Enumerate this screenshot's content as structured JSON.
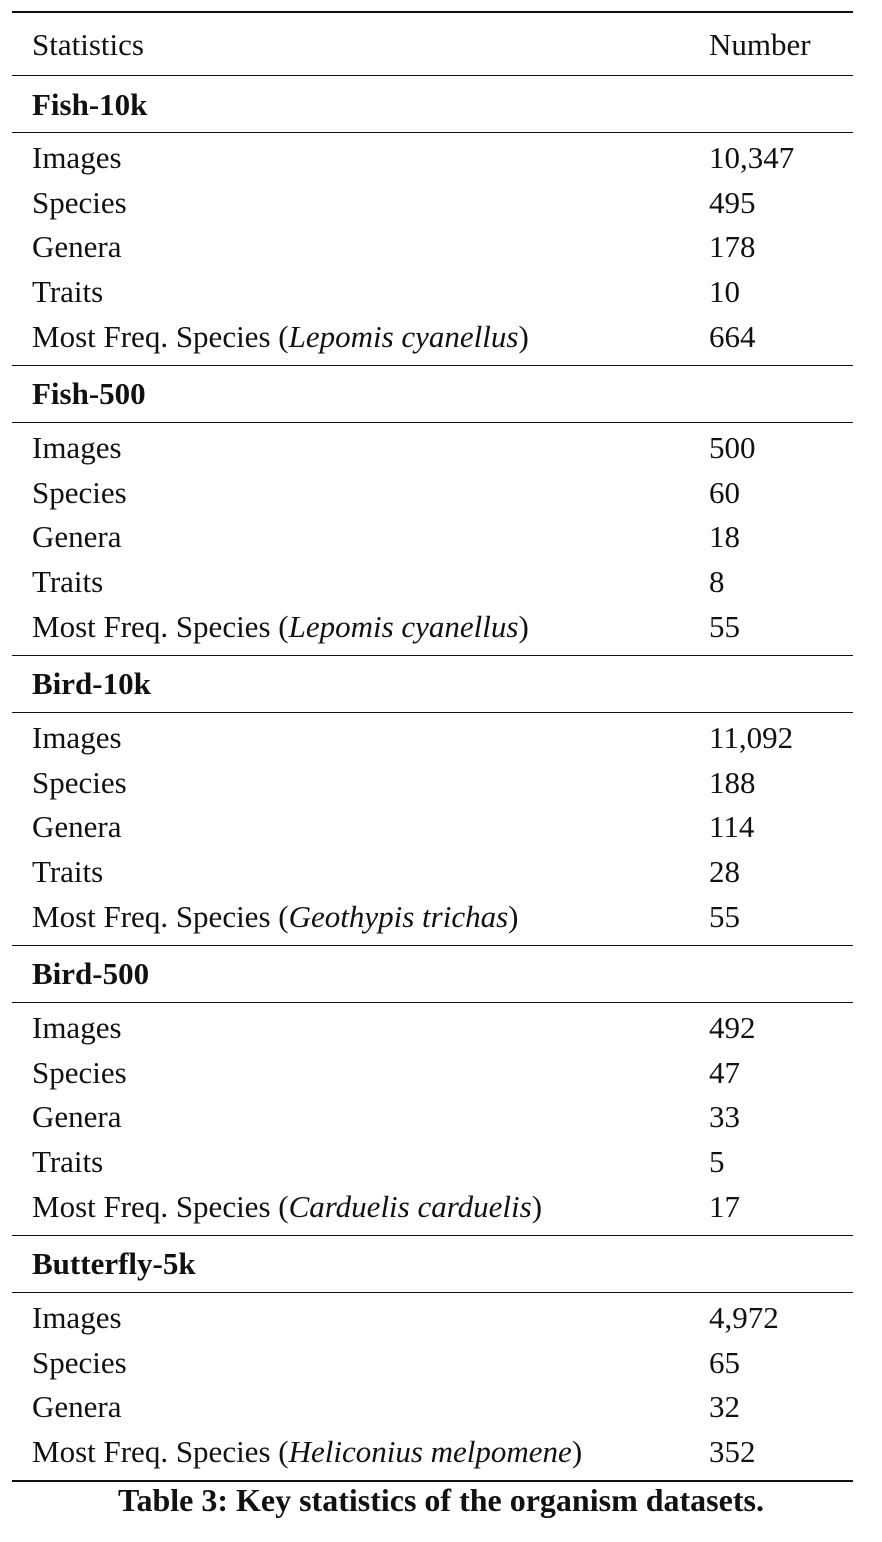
{
  "table": {
    "header": {
      "statistic": "Statistics",
      "number": "Number"
    },
    "sections": [
      {
        "title": "Fish-10k",
        "rows": [
          {
            "label": "Images",
            "value": "10,347"
          },
          {
            "label": "Species",
            "value": "495"
          },
          {
            "label": "Genera",
            "value": "178"
          },
          {
            "label": "Traits",
            "value": "10"
          },
          {
            "label": "Most Freq. Species (",
            "species": "Lepomis cyanellus",
            "suffix": ")",
            "value": "664"
          }
        ]
      },
      {
        "title": "Fish-500",
        "rows": [
          {
            "label": "Images",
            "value": "500"
          },
          {
            "label": "Species",
            "value": "60"
          },
          {
            "label": "Genera",
            "value": "18"
          },
          {
            "label": "Traits",
            "value": "8"
          },
          {
            "label": "Most Freq. Species (",
            "species": "Lepomis cyanellus",
            "suffix": ")",
            "value": "55"
          }
        ]
      },
      {
        "title": "Bird-10k",
        "rows": [
          {
            "label": "Images",
            "value": "11,092"
          },
          {
            "label": "Species",
            "value": "188"
          },
          {
            "label": "Genera",
            "value": "114"
          },
          {
            "label": "Traits",
            "value": "28"
          },
          {
            "label": "Most Freq. Species (",
            "species": "Geothypis trichas",
            "suffix": ")",
            "value": "55"
          }
        ]
      },
      {
        "title": "Bird-500",
        "rows": [
          {
            "label": "Images",
            "value": "492"
          },
          {
            "label": "Species",
            "value": "47"
          },
          {
            "label": "Genera",
            "value": "33"
          },
          {
            "label": "Traits",
            "value": "5"
          },
          {
            "label": "Most Freq. Species (",
            "species": "Carduelis carduelis",
            "suffix": ")",
            "value": "17"
          }
        ]
      },
      {
        "title": "Butterfly-5k",
        "rows": [
          {
            "label": "Images",
            "value": "4,972"
          },
          {
            "label": "Species",
            "value": "65"
          },
          {
            "label": "Genera",
            "value": "32"
          },
          {
            "label": "Most Freq. Species (",
            "species": "Heliconius melpomene",
            "suffix": ")",
            "value": "352"
          }
        ]
      }
    ]
  },
  "caption": "Table 3: Key statistics of the organism datasets."
}
